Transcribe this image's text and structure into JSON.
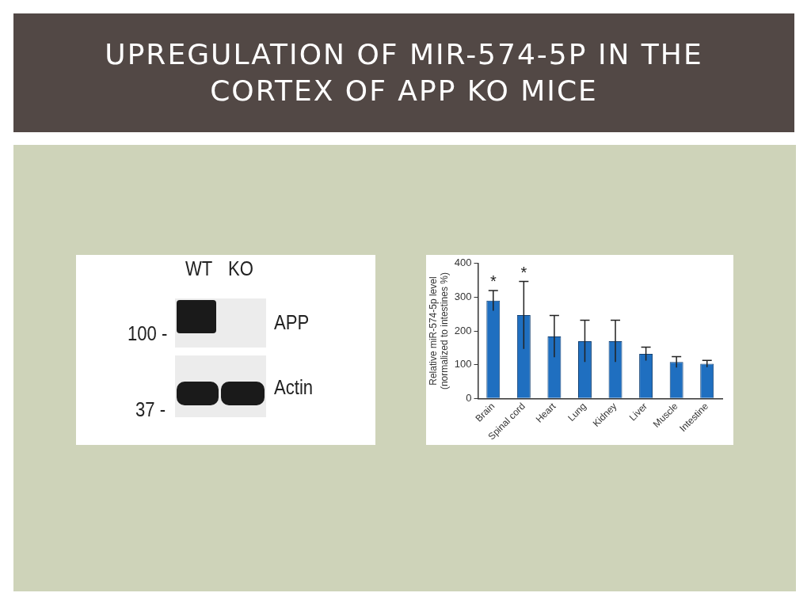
{
  "chart_data": [
    {
      "type": "other",
      "title": "UPREGULATION OF MIR-574-5P IN THE CORTEX OF APP KO MICE",
      "annotations": [
        "WT",
        "KO",
        "APP",
        "Actin",
        "100 -",
        "37 -"
      ]
    },
    {
      "type": "bar",
      "ylabel": "Relative miR-574-5p level (normalized to intestines %)",
      "categories": [
        "Brain",
        "Spinal cord",
        "Heart",
        "Lung",
        "Kidney",
        "Liver",
        "Muscle",
        "Intestine"
      ],
      "values": [
        290,
        247,
        184,
        170,
        170,
        132,
        108,
        103
      ],
      "errors": [
        30,
        100,
        62,
        62,
        62,
        20,
        16,
        10
      ],
      "color": "#1f6fc0",
      "ylim": [
        0,
        400
      ],
      "yticks": [
        0,
        100,
        200,
        300,
        400
      ],
      "grid": false,
      "legend": false,
      "annotations": [
        "*",
        "*"
      ]
    }
  ]
}
